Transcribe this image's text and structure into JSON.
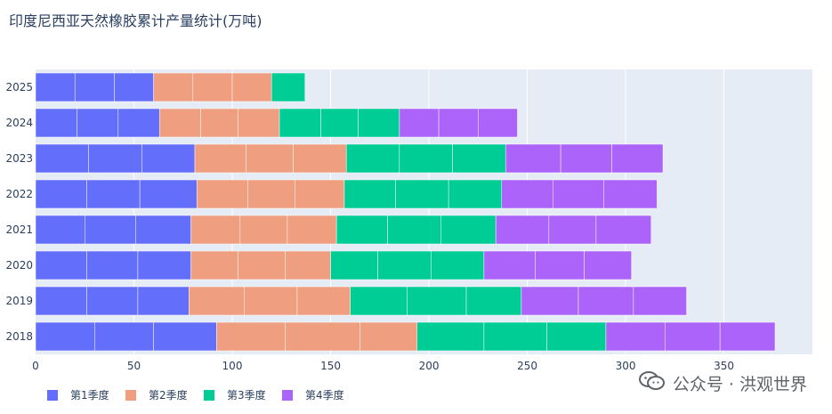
{
  "title": "印度尼西亚天然橡胶累计产量统计(万吨)",
  "watermark": {
    "text": "公众号 · 洪观世界",
    "icon": "wechat-icon"
  },
  "colors": {
    "background": "#ffffff",
    "plot_background": "#e5ecf6",
    "grid": "#ffffff",
    "text": "#2a3f5f"
  },
  "chart_data": {
    "type": "bar",
    "orientation": "horizontal",
    "stacked": true,
    "title": "印度尼西亚天然橡胶累计产量统计(万吨)",
    "xlabel": "",
    "ylabel": "",
    "xlim": [
      0,
      395
    ],
    "x_ticks": [
      0,
      50,
      100,
      150,
      200,
      250,
      300,
      350
    ],
    "grid": true,
    "legend_position": "bottom-left",
    "categories": [
      "2018",
      "2019",
      "2020",
      "2021",
      "2022",
      "2023",
      "2024",
      "2025"
    ],
    "series": [
      {
        "name": "第1季度",
        "color": "#636efa",
        "values": [
          92,
          78,
          79,
          79,
          82,
          81,
          63,
          60
        ],
        "segments": [
          [
            30,
            30,
            32
          ],
          [
            26,
            26,
            26
          ],
          [
            26,
            26,
            27
          ],
          [
            25,
            26,
            28
          ],
          [
            26,
            27,
            29
          ],
          [
            27,
            27,
            27
          ],
          [
            21,
            21,
            21
          ],
          [
            20,
            20,
            20
          ]
        ]
      },
      {
        "name": "第2季度",
        "color": "#ef9e7f",
        "values": [
          102,
          82,
          71,
          74,
          75,
          77,
          61,
          60
        ],
        "segments": [
          [
            35,
            38,
            29
          ],
          [
            28,
            27,
            27
          ],
          [
            24,
            24,
            23
          ],
          [
            25,
            24,
            25
          ],
          [
            26,
            24,
            25
          ],
          [
            26,
            24,
            27
          ],
          [
            21,
            19,
            21
          ],
          [
            20,
            20,
            20
          ]
        ]
      },
      {
        "name": "第3季度",
        "color": "#00cc96",
        "values": [
          96,
          87,
          78,
          81,
          80,
          81,
          61,
          17
        ],
        "segments": [
          [
            34,
            32,
            30
          ],
          [
            29,
            30,
            28
          ],
          [
            24,
            27,
            27
          ],
          [
            26,
            27,
            28
          ],
          [
            26,
            27,
            27
          ],
          [
            27,
            27,
            27
          ],
          [
            21,
            19,
            21
          ],
          [
            17
          ]
        ]
      },
      {
        "name": "第4季度",
        "color": "#ab63fa",
        "values": [
          86,
          84,
          75,
          79,
          79,
          80,
          60,
          0
        ],
        "segments": [
          [
            30,
            28,
            28
          ],
          [
            29,
            28,
            27
          ],
          [
            26,
            25,
            24
          ],
          [
            27,
            24,
            28
          ],
          [
            26,
            26,
            27
          ],
          [
            28,
            26,
            26
          ],
          [
            20,
            20,
            20
          ],
          []
        ]
      }
    ]
  }
}
